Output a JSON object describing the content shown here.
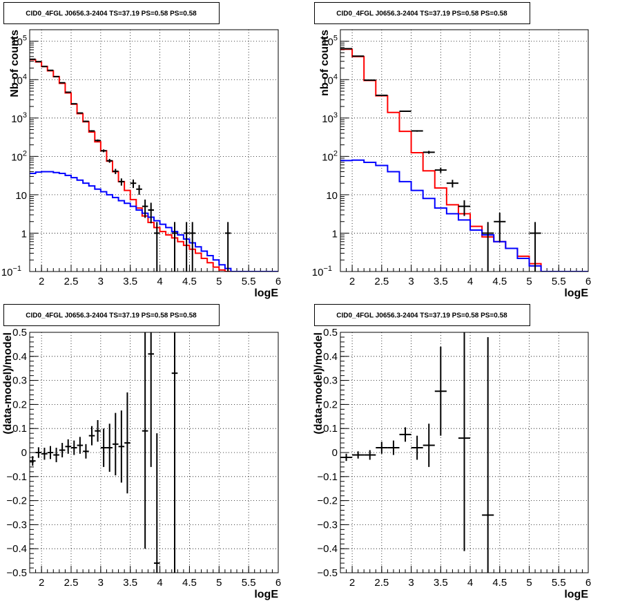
{
  "chart_data": [
    {
      "type": "step-histogram",
      "title": "CID0_4FGL J0656.3-2404 TS=37.19 PS=0.58 PS=0.58",
      "xlabel": "logE",
      "ylabel": "Nb of counts",
      "xlim": [
        1.8,
        6.0
      ],
      "ylim": [
        0.1,
        200000
      ],
      "yscale": "log",
      "grid": true,
      "xticks": [
        "2",
        "2.5",
        "3",
        "3.5",
        "4",
        "4.5",
        "5",
        "5.5",
        "6"
      ],
      "yticks": [
        {
          "v": 0.1,
          "label": "10",
          "exp": "−1"
        },
        {
          "v": 1,
          "label": "1",
          "exp": ""
        },
        {
          "v": 10,
          "label": "10",
          "exp": ""
        },
        {
          "v": 100,
          "label": "10",
          "exp": "2"
        },
        {
          "v": 1000,
          "label": "10",
          "exp": "3"
        },
        {
          "v": 10000,
          "label": "10",
          "exp": "4"
        },
        {
          "v": 100000,
          "label": "10",
          "exp": "5"
        }
      ],
      "bin_width": 0.1,
      "series": [
        {
          "role": "total-model",
          "color": "#ff0000",
          "edges": [
            1.8,
            6.0
          ],
          "values": [
            33000,
            29000,
            22000,
            17000,
            12000,
            8000,
            4500,
            2300,
            1300,
            800,
            430,
            240,
            140,
            75,
            40,
            22,
            13,
            7.5,
            4.5,
            2.8,
            1.9,
            1.4,
            1.1,
            0.9,
            0.75,
            0.6,
            0.48,
            0.38,
            0.3,
            0.22,
            0.17,
            0.13,
            0.11,
            0.1,
            0.1,
            0.1,
            0.1,
            0.1,
            0.1,
            0.1,
            0.1,
            0.1
          ]
        },
        {
          "role": "component-model",
          "color": "#0000ff",
          "edges": [
            1.8,
            6.0
          ],
          "values": [
            36,
            39,
            40,
            40,
            38,
            36,
            32,
            28,
            24,
            20,
            17,
            14,
            12,
            10,
            8.5,
            7,
            6,
            5,
            4,
            3.3,
            2.6,
            2.1,
            1.7,
            1.4,
            1.1,
            0.9,
            0.7,
            0.56,
            0.44,
            0.34,
            0.26,
            0.2,
            0.15,
            0.12,
            0.1,
            0.1,
            0.1,
            0.1,
            0.1,
            0.1,
            0.1,
            0.1
          ]
        }
      ],
      "data_points": [
        {
          "x": 1.85,
          "y": 34000
        },
        {
          "x": 1.95,
          "y": 29500
        },
        {
          "x": 2.05,
          "y": 22000
        },
        {
          "x": 2.15,
          "y": 17500
        },
        {
          "x": 2.25,
          "y": 12000
        },
        {
          "x": 2.35,
          "y": 8300
        },
        {
          "x": 2.45,
          "y": 4700
        },
        {
          "x": 2.55,
          "y": 2350
        },
        {
          "x": 2.65,
          "y": 1350
        },
        {
          "x": 2.75,
          "y": 820
        },
        {
          "x": 2.85,
          "y": 460
        },
        {
          "x": 2.95,
          "y": 260
        },
        {
          "x": 3.05,
          "y": 140
        },
        {
          "x": 3.15,
          "y": 77
        },
        {
          "x": 3.25,
          "y": 41
        },
        {
          "x": 3.35,
          "y": 22
        },
        {
          "x": 3.55,
          "y": 20,
          "err": 5
        },
        {
          "x": 3.65,
          "y": 14,
          "err": 4
        },
        {
          "x": 3.75,
          "y": 5,
          "err": 2.5
        },
        {
          "x": 3.85,
          "y": 4,
          "err": 2.2
        },
        {
          "x": 3.95,
          "y": 1,
          "err": 0.95
        },
        {
          "x": 4.25,
          "y": 1,
          "err": 0.95
        },
        {
          "x": 4.45,
          "y": 1,
          "err": 0.95
        },
        {
          "x": 4.55,
          "y": 1,
          "err": 0.95
        },
        {
          "x": 5.15,
          "y": 1,
          "err": 0.95
        }
      ]
    },
    {
      "type": "step-histogram",
      "title": "CID0_4FGL J0656.3-2404 TS=37.19 PS=0.58 PS=0.58",
      "xlabel": "logE",
      "ylabel": "nb of counts",
      "xlim": [
        1.8,
        6.0
      ],
      "ylim": [
        0.1,
        200000
      ],
      "yscale": "log",
      "grid": true,
      "xticks": [
        "2",
        "2.5",
        "3",
        "3.5",
        "4",
        "4.5",
        "5",
        "5.5",
        "6"
      ],
      "yticks": [
        {
          "v": 0.1,
          "label": "10",
          "exp": "−1"
        },
        {
          "v": 1,
          "label": "1",
          "exp": ""
        },
        {
          "v": 10,
          "label": "10",
          "exp": ""
        },
        {
          "v": 100,
          "label": "10",
          "exp": "2"
        },
        {
          "v": 1000,
          "label": "10",
          "exp": "3"
        },
        {
          "v": 10000,
          "label": "10",
          "exp": "4"
        },
        {
          "v": 100000,
          "label": "10",
          "exp": "5"
        }
      ],
      "bin_width": 0.2,
      "series": [
        {
          "role": "total-model",
          "color": "#ff0000",
          "values": [
            62000,
            40000,
            9500,
            3800,
            1400,
            450,
            125,
            42,
            15,
            5.5,
            3.2,
            1.5,
            0.8,
            0.6,
            0.4,
            0.25,
            0.16,
            0.1,
            0.1,
            0.1,
            0.1
          ]
        },
        {
          "role": "component-model",
          "color": "#0000ff",
          "values": [
            78,
            80,
            70,
            58,
            40,
            22,
            13,
            8,
            4.5,
            3.2,
            2.2,
            1.2,
            0.9,
            0.6,
            0.4,
            0.22,
            0.14,
            0.1,
            0.1,
            0.1,
            0.1
          ]
        }
      ],
      "data_points": [
        {
          "x": 1.9,
          "y": 64000
        },
        {
          "x": 2.1,
          "y": 41000
        },
        {
          "x": 2.3,
          "y": 9700
        },
        {
          "x": 2.5,
          "y": 3900
        },
        {
          "x": 2.9,
          "y": 1500
        },
        {
          "x": 3.1,
          "y": 460
        },
        {
          "x": 3.3,
          "y": 128
        },
        {
          "x": 3.5,
          "y": 44,
          "err": 7
        },
        {
          "x": 3.7,
          "y": 20,
          "err": 4.5
        },
        {
          "x": 3.9,
          "y": 5,
          "err": 2.2
        },
        {
          "x": 4.3,
          "y": 1,
          "err": 0.95
        },
        {
          "x": 4.5,
          "y": 2,
          "err": 1.4
        },
        {
          "x": 5.1,
          "y": 1,
          "err": 0.95
        }
      ]
    },
    {
      "type": "scatter-errorbars",
      "title": "CID0_4FGL J0656.3-2404 TS=37.19 PS=0.58 PS=0.58",
      "xlabel": "logE",
      "ylabel": "(data-model)/model",
      "xlim": [
        1.8,
        6.0
      ],
      "ylim": [
        -0.5,
        0.5
      ],
      "grid": true,
      "xticks": [
        "2",
        "2.5",
        "3",
        "3.5",
        "4",
        "4.5",
        "5",
        "5.5",
        "6"
      ],
      "yticks": [
        "0.5",
        "0.4",
        "0.3",
        "0.2",
        "0.1",
        "0",
        "−0.1",
        "−0.2",
        "−0.3",
        "−0.4",
        "−0.5"
      ],
      "xerr": 0.05,
      "points": [
        {
          "x": 1.85,
          "y": -0.035,
          "e": 0.02
        },
        {
          "x": 1.95,
          "y": 0.0,
          "e": 0.022
        },
        {
          "x": 2.05,
          "y": -0.005,
          "e": 0.025
        },
        {
          "x": 2.15,
          "y": 0.0,
          "e": 0.027
        },
        {
          "x": 2.25,
          "y": -0.01,
          "e": 0.03
        },
        {
          "x": 2.35,
          "y": 0.01,
          "e": 0.03
        },
        {
          "x": 2.45,
          "y": 0.025,
          "e": 0.03
        },
        {
          "x": 2.55,
          "y": 0.02,
          "e": 0.03
        },
        {
          "x": 2.65,
          "y": 0.03,
          "e": 0.035
        },
        {
          "x": 2.75,
          "y": 0.005,
          "e": 0.03
        },
        {
          "x": 2.85,
          "y": 0.07,
          "e": 0.04
        },
        {
          "x": 2.95,
          "y": 0.09,
          "e": 0.045
        },
        {
          "x": 3.05,
          "y": 0.02,
          "e": 0.08
        },
        {
          "x": 3.15,
          "y": 0.02,
          "e": 0.1
        },
        {
          "x": 3.25,
          "y": 0.035,
          "e": 0.13
        },
        {
          "x": 3.35,
          "y": 0.025,
          "e": 0.15
        },
        {
          "x": 3.45,
          "y": 0.04,
          "e": 0.21
        },
        {
          "x": 3.75,
          "y": 0.09,
          "e": 0.49
        },
        {
          "x": 3.85,
          "y": 0.41,
          "e": 0.47
        },
        {
          "x": 3.95,
          "y": -0.46,
          "e": 0.54
        },
        {
          "x": 4.25,
          "y": 0.33,
          "e": 0.9
        }
      ]
    },
    {
      "type": "scatter-errorbars",
      "title": "CID0_4FGL J0656.3-2404 TS=37.19 PS=0.58 PS=0.58",
      "xlabel": "logE",
      "ylabel": "(data-model)/model",
      "xlim": [
        1.8,
        6.0
      ],
      "ylim": [
        -0.5,
        0.5
      ],
      "grid": true,
      "xticks": [
        "2",
        "2.5",
        "3",
        "3.5",
        "4",
        "4.5",
        "5",
        "5.5",
        "6"
      ],
      "yticks": [
        "0.5",
        "0.4",
        "0.3",
        "0.2",
        "0.1",
        "0",
        "−0.1",
        "−0.2",
        "−0.3",
        "−0.4",
        "−0.5"
      ],
      "xerr": 0.1,
      "points": [
        {
          "x": 1.9,
          "y": -0.02,
          "e": 0.015
        },
        {
          "x": 2.1,
          "y": -0.01,
          "e": 0.015
        },
        {
          "x": 2.3,
          "y": -0.01,
          "e": 0.02
        },
        {
          "x": 2.5,
          "y": 0.02,
          "e": 0.025
        },
        {
          "x": 2.7,
          "y": 0.02,
          "e": 0.03
        },
        {
          "x": 2.9,
          "y": 0.075,
          "e": 0.03
        },
        {
          "x": 3.1,
          "y": 0.02,
          "e": 0.05
        },
        {
          "x": 3.3,
          "y": 0.03,
          "e": 0.09
        },
        {
          "x": 3.5,
          "y": 0.255,
          "e": 0.185
        },
        {
          "x": 3.9,
          "y": 0.06,
          "e": 0.47
        },
        {
          "x": 4.3,
          "y": -0.26,
          "e": 0.74
        }
      ]
    }
  ]
}
